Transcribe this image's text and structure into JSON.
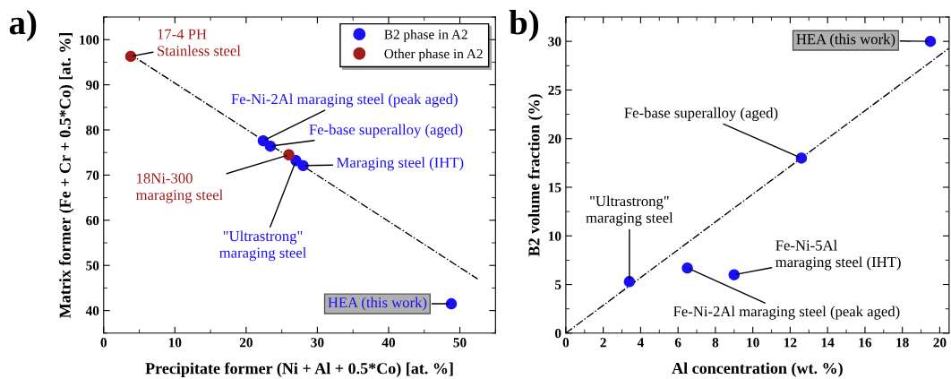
{
  "chart_data": [
    {
      "type": "scatter",
      "title": "a)",
      "xlabel": "Precipitate former (Ni + Al + 0.5*Co) [at. %]",
      "ylabel": "Matrix former (Fe + Cr + 0.5*Co) [at. %]",
      "xlim": [
        0,
        55
      ],
      "ylim": [
        35,
        105
      ],
      "xticks": [
        0,
        10,
        20,
        30,
        40,
        50
      ],
      "yticks": [
        40,
        50,
        60,
        70,
        80,
        90,
        100
      ],
      "legend": "top right",
      "marker": "circle",
      "grid": false,
      "series": [
        {
          "name": "B2 phase in A2",
          "color": "#1a0ff5",
          "x": [
            22.4,
            23.4,
            27.0,
            28.0,
            48.8
          ],
          "values": [
            77.6,
            76.4,
            73.2,
            72.1,
            41.5
          ]
        },
        {
          "name": "Other phase in A2",
          "color": "#a01c1c",
          "x": [
            3.8,
            26.0
          ],
          "values": [
            96.3,
            74.5
          ]
        },
        {
          "type": "line",
          "marker": "none",
          "color": "#000000",
          "line_style": "dashdot",
          "x": [
            3.5,
            52.5
          ],
          "values": [
            97.0,
            47.0
          ]
        }
      ],
      "annotations": [
        {
          "text": "17-4 PH\nStainless steel",
          "x": 3.8,
          "y": 96.3
        },
        {
          "text": "Fe-Ni-2Al maraging steel (peak aged)",
          "x": 22.4,
          "y": 77.6
        },
        {
          "text": "Fe-base superalloy (aged)",
          "x": 23.4,
          "y": 76.4
        },
        {
          "text": "18Ni-300\nmaraging steel",
          "x": 26.0,
          "y": 74.5
        },
        {
          "text": "\"Ultrastrong\"\nmaraging steel",
          "x": 27.0,
          "y": 73.2
        },
        {
          "text": "Maraging steel (IHT)",
          "x": 28.0,
          "y": 72.1
        },
        {
          "text": "HEA (this work)",
          "x": 48.8,
          "y": 41.5
        }
      ]
    },
    {
      "type": "scatter",
      "title": "b)",
      "xlabel": "Al concentration (wt. %)",
      "ylabel": "B2 volume fraction (%)",
      "xlim": [
        0,
        20.5
      ],
      "ylim": [
        0,
        32.5
      ],
      "xticks": [
        0,
        2,
        4,
        6,
        8,
        10,
        12,
        14,
        16,
        18,
        20
      ],
      "yticks": [
        0,
        5,
        10,
        15,
        20,
        25,
        30
      ],
      "marker": "circle",
      "grid": false,
      "series": [
        {
          "color": "#1a0ff5",
          "x": [
            3.4,
            6.5,
            9.0,
            12.6,
            19.5
          ],
          "values": [
            5.3,
            6.7,
            6.0,
            18.0,
            30.0
          ]
        },
        {
          "type": "line",
          "marker": "none",
          "color": "#000000",
          "line_style": "dashdot",
          "x": [
            0,
            20.5
          ],
          "values": [
            0,
            29.3
          ]
        }
      ],
      "annotations": [
        {
          "text": "\"Ultrastrong\"\nmaraging steel",
          "x": 3.4,
          "y": 5.3
        },
        {
          "text": "Fe-Ni-2Al maraging steel (peak aged)",
          "x": 6.5,
          "y": 6.7
        },
        {
          "text": "Fe-Ni-5Al\nmaraging steel (IHT)",
          "x": 9.0,
          "y": 6.0
        },
        {
          "text": "Fe-base superalloy (aged)",
          "x": 12.6,
          "y": 18.0
        },
        {
          "text": "HEA (this work)",
          "x": 19.5,
          "y": 30.0
        }
      ]
    }
  ]
}
